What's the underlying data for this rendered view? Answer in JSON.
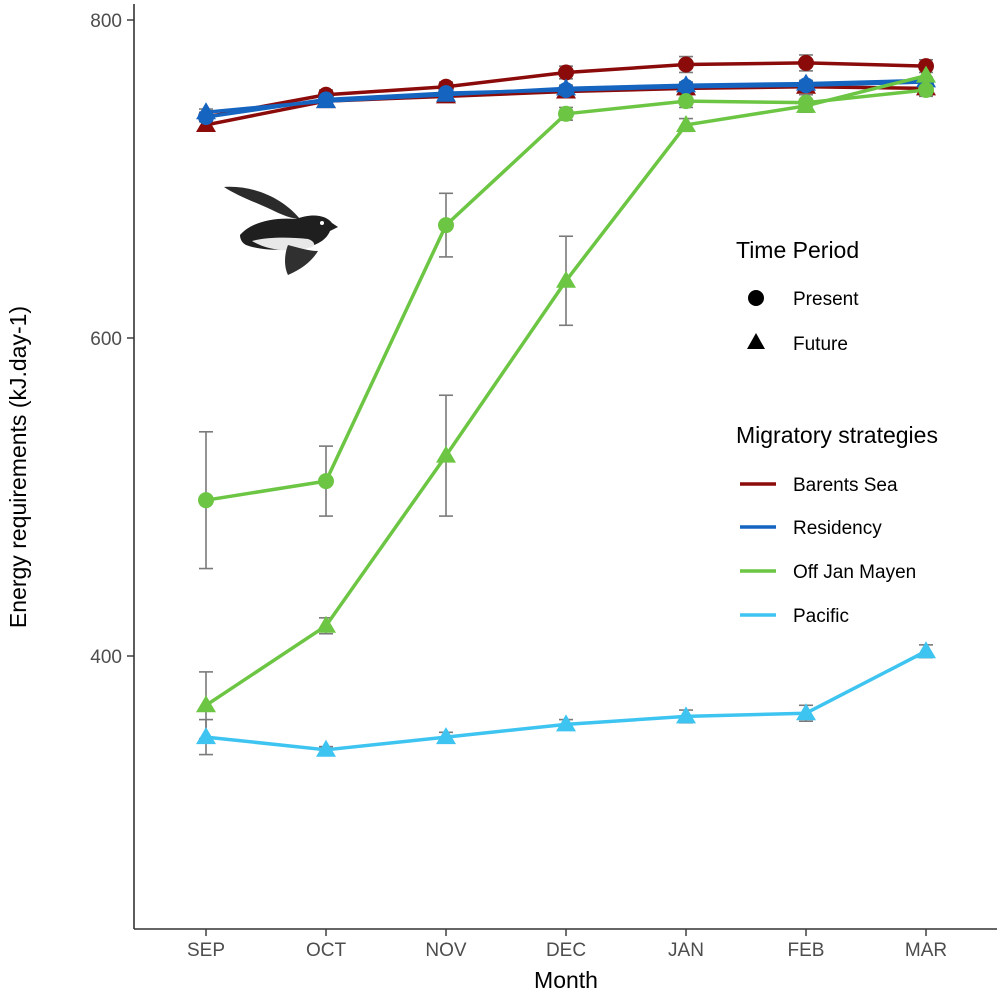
{
  "chart_data": {
    "type": "line",
    "title": "",
    "xlabel": "Month",
    "ylabel": "Energy requirements (kJ.day-1)",
    "categories": [
      "SEP",
      "OCT",
      "NOV",
      "DEC",
      "JAN",
      "FEB",
      "MAR"
    ],
    "yticks": [
      "400",
      "600",
      "800"
    ],
    "ylim": [
      325,
      895
    ],
    "grid": false,
    "legend": {
      "position": "right",
      "time_title": "Time Period",
      "time_items": [
        {
          "label": "Present",
          "shape": "circle"
        },
        {
          "label": "Future",
          "shape": "triangle"
        }
      ],
      "strategy_title": "Migratory strategies",
      "strategy_items": [
        {
          "label": "Barents Sea",
          "color": "#8b0a0a"
        },
        {
          "label": "Residency",
          "color": "#1565c0"
        },
        {
          "label": "Off Jan Mayen",
          "color": "#6cc644"
        },
        {
          "label": "Pacific",
          "color": "#3ec4f0"
        }
      ]
    },
    "series": [
      {
        "strategy": "Barents Sea",
        "period": "Present",
        "color": "#8b0a0a",
        "shape": "circle",
        "values": [
          739,
          753,
          758,
          767,
          772,
          773,
          771
        ],
        "err": [
          3,
          3,
          3,
          4,
          5,
          5,
          4
        ]
      },
      {
        "strategy": "Barents Sea",
        "period": "Future",
        "color": "#8b0a0a",
        "shape": "triangle",
        "values": [
          734,
          749,
          752,
          755,
          757,
          758,
          757
        ],
        "err": [
          2,
          2,
          2,
          3,
          3,
          3,
          3
        ]
      },
      {
        "strategy": "Residency",
        "period": "Present",
        "color": "#1565c0",
        "shape": "circle",
        "values": [
          739,
          750,
          754,
          756,
          758,
          759,
          761
        ],
        "err": [
          2,
          2,
          2,
          2,
          2,
          2,
          2
        ]
      },
      {
        "strategy": "Residency",
        "period": "Future",
        "color": "#1565c0",
        "shape": "triangle",
        "values": [
          742,
          749,
          753,
          757,
          759,
          760,
          762
        ],
        "err": [
          2,
          2,
          2,
          2,
          2,
          2,
          2
        ]
      },
      {
        "strategy": "Off Jan Mayen",
        "period": "Present",
        "color": "#6cc644",
        "shape": "circle",
        "values": [
          498,
          510,
          671,
          741,
          749,
          748,
          756
        ],
        "err": [
          43,
          22,
          20,
          4,
          4,
          5,
          4
        ]
      },
      {
        "strategy": "Off Jan Mayen",
        "period": "Future",
        "color": "#6cc644",
        "shape": "triangle",
        "values": [
          369,
          419,
          526,
          636,
          734,
          746,
          765
        ],
        "err": [
          21,
          5,
          38,
          28,
          4,
          4,
          5
        ]
      },
      {
        "strategy": "Pacific",
        "period": "Future",
        "color": "#3ec4f0",
        "shape": "triangle",
        "values": [
          349,
          341,
          349,
          357,
          362,
          364,
          403
        ],
        "err": [
          11,
          2,
          3,
          3,
          4,
          5,
          4
        ]
      }
    ]
  }
}
